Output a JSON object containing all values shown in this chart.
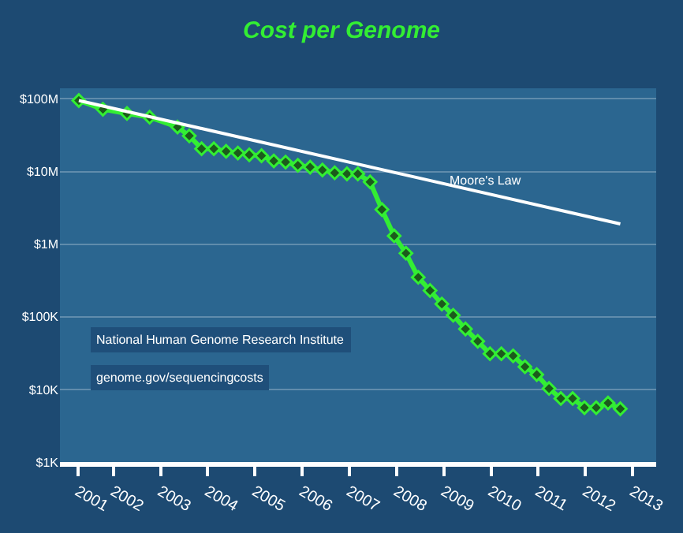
{
  "chart_data": {
    "type": "line",
    "title": "Cost per Genome",
    "x": [
      2001.27,
      2001.78,
      2002.29,
      2002.77,
      2003.36,
      2003.61,
      2003.87,
      2004.13,
      2004.39,
      2004.64,
      2004.88,
      2005.14,
      2005.4,
      2005.65,
      2005.91,
      2006.17,
      2006.43,
      2006.69,
      2006.95,
      2007.18,
      2007.44,
      2007.69,
      2007.95,
      2008.2,
      2008.46,
      2008.71,
      2008.96,
      2009.2,
      2009.46,
      2009.72,
      2009.98,
      2010.22,
      2010.47,
      2010.72,
      2010.97,
      2011.23,
      2011.48,
      2011.73,
      2011.98,
      2012.23,
      2012.48,
      2012.74
    ],
    "series": [
      {
        "color": "#33ee33",
        "marker": "diamond",
        "values": [
          95000000,
          72000000,
          63000000,
          56000000,
          41000000,
          31000000,
          20600000,
          20600000,
          19000000,
          18000000,
          17000000,
          16500000,
          14000000,
          13500000,
          12200000,
          11500000,
          10500000,
          9600000,
          9300000,
          9300000,
          7200000,
          3000000,
          1300000,
          750000,
          350000,
          230000,
          150000,
          105000,
          68000,
          46000,
          31000,
          31000,
          29000,
          20500,
          16000,
          10300,
          7500,
          7500,
          5600,
          5600,
          6500,
          5400
        ]
      },
      {
        "name": "Moore's Law",
        "color": "#ffffff",
        "marker": "none",
        "x": [
          2001.27,
          2012.74
        ],
        "values": [
          95000000,
          1900000
        ]
      }
    ],
    "annotations": [
      "National Human Genome Research Institute",
      "genome.gov/sequencingcosts"
    ],
    "log": "y",
    "xlim": [
      2000.87,
      2013.5
    ],
    "ylim": [
      1000,
      140000000
    ],
    "xticks": [
      {
        "value": 2001.25,
        "label": "2001"
      },
      2002,
      2003,
      2004,
      2005,
      2006,
      2007,
      2008,
      2009,
      2010,
      2011,
      2012,
      2013
    ],
    "yticks": [
      {
        "value": 1000,
        "label": "$1K"
      },
      {
        "value": 10000,
        "label": "$10K"
      },
      {
        "value": 100000,
        "label": "$100K"
      },
      {
        "value": 1000000,
        "label": "$1M"
      },
      {
        "value": 10000000,
        "label": "$10M"
      },
      {
        "value": 100000000,
        "label": "$100M"
      }
    ],
    "grid": "y",
    "legend": false
  }
}
